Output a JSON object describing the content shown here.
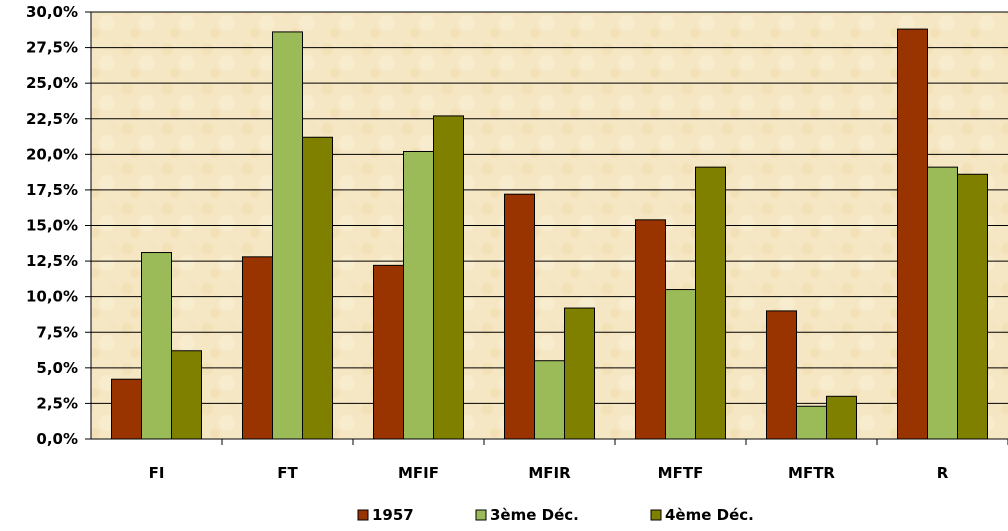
{
  "chart_data": {
    "type": "bar",
    "title": "",
    "xlabel": "",
    "ylabel": "",
    "categories": [
      "FI",
      "FT",
      "MFIF",
      "MFIR",
      "MFTF",
      "MFTR",
      "R"
    ],
    "series": [
      {
        "name": "1957",
        "color": "#993300",
        "values": [
          4.2,
          12.8,
          12.2,
          17.2,
          15.4,
          9.0,
          28.8
        ]
      },
      {
        "name": "3ème Déc.",
        "color": "#9BBB59",
        "values": [
          13.1,
          28.6,
          20.2,
          5.5,
          10.5,
          2.3,
          19.1
        ]
      },
      {
        "name": "4ème Déc.",
        "color": "#808000",
        "values": [
          6.2,
          21.2,
          22.7,
          9.2,
          19.1,
          3.0,
          18.6
        ]
      }
    ],
    "ylim": [
      0,
      30
    ],
    "yticks": [
      "0,0%",
      "2,5%",
      "5,0%",
      "7,5%",
      "10,0%",
      "12,5%",
      "15,0%",
      "17,5%",
      "20,0%",
      "22,5%",
      "25,0%",
      "27,5%",
      "30,0%"
    ],
    "grid": true,
    "legend_position": "bottom"
  }
}
